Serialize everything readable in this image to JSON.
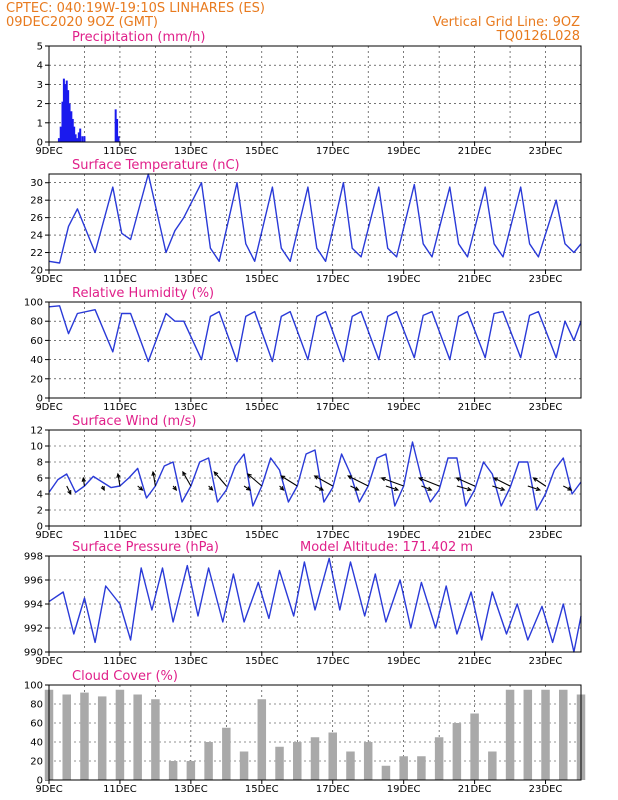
{
  "header": {
    "line1": "CPTEC:  040:19W-19:10S  LINHARES (ES)",
    "line2": "09DEC2020 9OZ (GMT)",
    "right1": "Vertical Grid Line: 9OZ",
    "right2": "TQ0126L028"
  },
  "chart_data": [
    {
      "type": "bar",
      "title": "Precipitation (mm/h)",
      "ylim": [
        0,
        5
      ],
      "yticks": [
        "0",
        "1",
        "2",
        "3",
        "4",
        "5"
      ],
      "xticks": [
        "9DEC",
        "11DEC",
        "13DEC",
        "15DEC",
        "17DEC",
        "19DEC",
        "21DEC",
        "23DEC"
      ],
      "grid": true,
      "color": "#1a1aee",
      "x_units": "days since 9DEC 09Z",
      "x": [
        0.28,
        0.33,
        0.38,
        0.42,
        0.46,
        0.5,
        0.54,
        0.58,
        0.63,
        0.67,
        0.71,
        0.75,
        0.8,
        0.84,
        0.88,
        0.94,
        1.0,
        1.88,
        1.92,
        1.96
      ],
      "values": [
        0.2,
        0.8,
        2.1,
        3.3,
        3.0,
        3.2,
        2.7,
        2.0,
        1.6,
        1.2,
        0.8,
        0.4,
        0.2,
        0.5,
        0.7,
        0.3,
        0.3,
        1.7,
        1.2,
        0.3
      ]
    },
    {
      "type": "line",
      "title": "Surface Temperature (nC)",
      "ylim": [
        20,
        31
      ],
      "yticks": [
        "20",
        "22",
        "24",
        "26",
        "28",
        "30"
      ],
      "xticks": [
        "9DEC",
        "11DEC",
        "13DEC",
        "15DEC",
        "17DEC",
        "19DEC",
        "21DEC",
        "23DEC"
      ],
      "grid": true,
      "color": "#2a3ad8",
      "x": [
        0,
        0.3,
        0.55,
        0.8,
        1.3,
        1.8,
        2.05,
        2.3,
        2.8,
        3.3,
        3.55,
        3.8,
        4.3,
        4.55,
        4.8,
        5.3,
        5.55,
        5.8,
        6.3,
        6.55,
        6.8,
        7.3,
        7.55,
        7.8,
        8.3,
        8.55,
        8.8,
        9.3,
        9.55,
        9.8,
        10.3,
        10.55,
        10.8,
        11.3,
        11.55,
        11.8,
        12.3,
        12.55,
        12.8,
        13.3,
        13.55,
        13.8,
        14.3,
        14.55,
        14.8,
        15.0
      ],
      "values": [
        21,
        20.8,
        25,
        27,
        22,
        29.5,
        24.2,
        23.5,
        31,
        22,
        24.5,
        26,
        30,
        22.5,
        21,
        30,
        23,
        21,
        29.5,
        22.5,
        21,
        29.5,
        22.5,
        21,
        30,
        22.5,
        21.5,
        29.5,
        22.5,
        21.5,
        29.8,
        23,
        21.5,
        29.5,
        23,
        21.5,
        29.5,
        23,
        21.5,
        29.5,
        23,
        21.5,
        28,
        23,
        22,
        23
      ]
    },
    {
      "type": "line",
      "title": "Relative Humidity (%)",
      "ylim": [
        0,
        100
      ],
      "yticks": [
        "0",
        "20",
        "40",
        "60",
        "80",
        "100"
      ],
      "xticks": [
        "9DEC",
        "11DEC",
        "13DEC",
        "15DEC",
        "17DEC",
        "19DEC",
        "21DEC",
        "23DEC"
      ],
      "grid": true,
      "color": "#2a3ad8",
      "x": [
        0,
        0.3,
        0.55,
        0.8,
        1.3,
        1.8,
        2.05,
        2.3,
        2.8,
        3.3,
        3.55,
        3.8,
        4.3,
        4.55,
        4.8,
        5.3,
        5.55,
        5.8,
        6.3,
        6.55,
        6.8,
        7.3,
        7.55,
        7.8,
        8.3,
        8.55,
        8.8,
        9.3,
        9.55,
        9.8,
        10.3,
        10.55,
        10.8,
        11.3,
        11.55,
        11.8,
        12.3,
        12.55,
        12.8,
        13.3,
        13.55,
        13.8,
        14.3,
        14.55,
        14.8,
        15.0
      ],
      "values": [
        95,
        96,
        67,
        88,
        92,
        48,
        88,
        88,
        38,
        88,
        80,
        80,
        40,
        85,
        90,
        38,
        85,
        90,
        38,
        85,
        90,
        40,
        85,
        90,
        38,
        85,
        90,
        40,
        85,
        90,
        42,
        86,
        90,
        40,
        85,
        90,
        42,
        88,
        90,
        42,
        86,
        90,
        42,
        80,
        60,
        80
      ]
    },
    {
      "type": "line",
      "title": "Surface Wind (m/s)",
      "ylim": [
        0,
        12
      ],
      "yticks": [
        "0",
        "2",
        "4",
        "6",
        "8",
        "10",
        "12"
      ],
      "xticks": [
        "9DEC",
        "11DEC",
        "13DEC",
        "15DEC",
        "17DEC",
        "19DEC",
        "21DEC",
        "23DEC"
      ],
      "grid": true,
      "color": "#2a3ad8",
      "x": [
        0,
        0.25,
        0.5,
        0.75,
        1.0,
        1.25,
        1.5,
        1.75,
        2.0,
        2.25,
        2.5,
        2.75,
        3.0,
        3.25,
        3.5,
        3.75,
        4.0,
        4.25,
        4.5,
        4.75,
        5.0,
        5.25,
        5.5,
        5.75,
        6.0,
        6.25,
        6.5,
        6.75,
        7.0,
        7.25,
        7.5,
        7.75,
        8.0,
        8.25,
        8.5,
        8.75,
        9.0,
        9.25,
        9.5,
        9.75,
        10.0,
        10.25,
        10.5,
        10.75,
        11.0,
        11.25,
        11.5,
        11.75,
        12.0,
        12.25,
        12.5,
        12.75,
        13.0,
        13.25,
        13.5,
        13.75,
        14.0,
        14.25,
        14.5,
        14.75,
        15.0
      ],
      "values": [
        4.2,
        5.8,
        6.5,
        4.2,
        5.0,
        6.2,
        5.5,
        4.8,
        5.0,
        6.0,
        7.2,
        3.5,
        5.0,
        7.5,
        8.0,
        3.0,
        5.0,
        8.0,
        8.5,
        3.0,
        4.5,
        7.5,
        9.0,
        2.5,
        5.0,
        8.5,
        7.0,
        3.0,
        5.0,
        9.0,
        9.5,
        3.0,
        4.8,
        9.0,
        6.5,
        3.0,
        5.0,
        8.5,
        9.0,
        2.5,
        5.0,
        10.5,
        6.0,
        3.0,
        4.5,
        8.5,
        8.5,
        2.5,
        4.5,
        8.0,
        6.5,
        2.5,
        4.8,
        8.0,
        8.0,
        2.0,
        4.0,
        7.0,
        8.5,
        4.0,
        5.5
      ],
      "vectors": {
        "x": [
          0.5,
          1.0,
          1.5,
          2.0,
          2.5,
          3.0,
          3.5,
          4.0,
          4.5,
          5.0,
          5.5,
          6.0,
          6.5,
          7.0,
          7.5,
          8.0,
          8.5,
          9.0,
          9.5,
          10.0,
          10.5,
          11.0,
          11.5,
          12.0,
          12.5,
          13.0,
          13.5,
          14.0,
          14.5
        ],
        "u": [
          1.0,
          -0.3,
          0.5,
          -0.5,
          1.2,
          -0.6,
          0.8,
          -2.0,
          1.0,
          -3.0,
          1.5,
          -3.5,
          1.0,
          -4.0,
          2.0,
          -4.5,
          2.0,
          -5.0,
          3.0,
          -5.5,
          2.5,
          -5.0,
          3.5,
          -4.5,
          3.0,
          -4.0,
          3.0,
          -3.0,
          2.0
        ],
        "v": [
          2.0,
          -2.0,
          1.0,
          -3.0,
          1.0,
          -3.5,
          1.0,
          -3.5,
          1.0,
          -3.5,
          1.0,
          -3.0,
          1.0,
          -2.5,
          1.0,
          -2.5,
          1.0,
          -2.5,
          1.0,
          -2.0,
          1.0,
          -2.0,
          1.0,
          -2.0,
          1.0,
          -2.0,
          1.0,
          -2.0,
          1.0
        ]
      }
    },
    {
      "type": "line",
      "title": "Surface Pressure (hPa)",
      "annotation": "Model Altitude: 171.402  m",
      "ylim": [
        990,
        998
      ],
      "yticks": [
        "990",
        "992",
        "994",
        "996",
        "998"
      ],
      "xticks": [
        "9DEC",
        "11DEC",
        "13DEC",
        "15DEC",
        "17DEC",
        "19DEC",
        "21DEC",
        "23DEC"
      ],
      "grid": true,
      "color": "#2a3ad8",
      "x": [
        0,
        0.4,
        0.7,
        1.0,
        1.3,
        1.6,
        2.0,
        2.3,
        2.6,
        2.9,
        3.2,
        3.5,
        3.9,
        4.2,
        4.5,
        4.9,
        5.2,
        5.5,
        5.9,
        6.2,
        6.5,
        6.9,
        7.2,
        7.5,
        7.9,
        8.2,
        8.5,
        8.9,
        9.2,
        9.5,
        9.9,
        10.2,
        10.5,
        10.9,
        11.2,
        11.5,
        11.9,
        12.2,
        12.5,
        12.9,
        13.2,
        13.5,
        13.9,
        14.2,
        14.5,
        14.8,
        15.0
      ],
      "values": [
        994.2,
        995.0,
        991.5,
        994.5,
        990.8,
        995.5,
        994.0,
        991.0,
        997.0,
        993.5,
        997.0,
        992.5,
        997.2,
        993.0,
        997.0,
        992.5,
        996.5,
        992.5,
        995.8,
        992.8,
        996.8,
        993.0,
        997.5,
        993.5,
        997.8,
        993.5,
        997.5,
        993.0,
        996.5,
        992.5,
        996.0,
        992.0,
        995.8,
        992.0,
        995.5,
        991.5,
        995.0,
        991.0,
        995.0,
        991.5,
        994.0,
        991.0,
        993.8,
        990.8,
        994.0,
        990.0,
        993.0
      ]
    },
    {
      "type": "bar",
      "title": "Cloud Cover (%)",
      "ylim": [
        0,
        100
      ],
      "yticks": [
        "0",
        "20",
        "40",
        "60",
        "80",
        "100"
      ],
      "xticks": [
        "9DEC",
        "11DEC",
        "13DEC",
        "15DEC",
        "17DEC",
        "19DEC",
        "21DEC",
        "23DEC"
      ],
      "grid": true,
      "color": "#a9a9a9",
      "x_units": "days since 9DEC 09Z",
      "x": [
        0,
        0.5,
        1.0,
        1.5,
        2.0,
        2.5,
        3.0,
        3.5,
        4.0,
        4.5,
        5.0,
        5.5,
        6.0,
        6.5,
        7.0,
        7.5,
        8.0,
        8.5,
        9.0,
        9.5,
        10.0,
        10.5,
        11.0,
        11.5,
        12.0,
        12.5,
        13.0,
        13.5,
        14.0,
        14.5,
        15.0
      ],
      "values": [
        95,
        90,
        92,
        88,
        95,
        90,
        85,
        20,
        20,
        40,
        55,
        30,
        85,
        35,
        40,
        45,
        50,
        30,
        40,
        15,
        25,
        25,
        45,
        60,
        70,
        30,
        95,
        95,
        95,
        95,
        90
      ]
    }
  ]
}
